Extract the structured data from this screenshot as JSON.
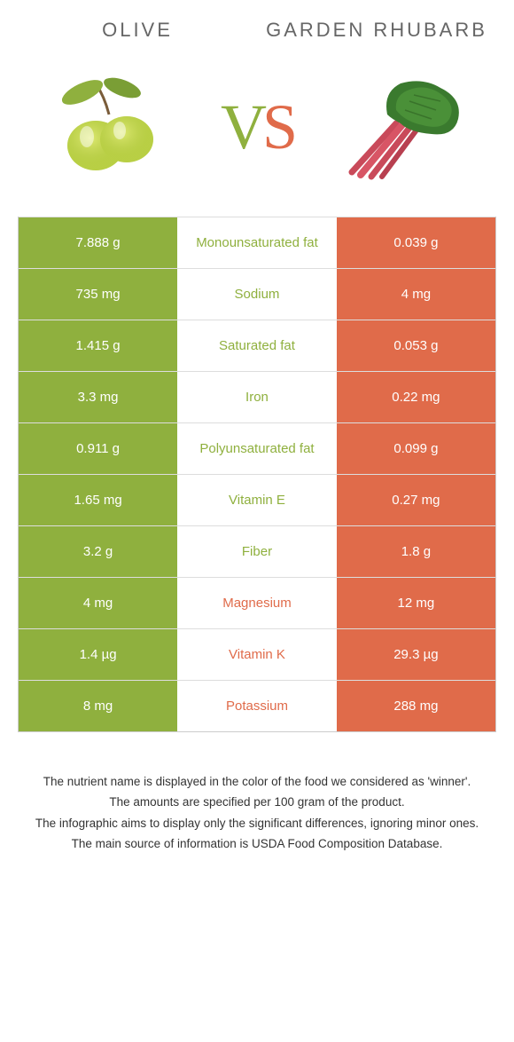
{
  "type": "infographic",
  "colors": {
    "left": "#8fb03e",
    "right": "#e06b4a",
    "background": "#ffffff",
    "border": "#dddddd",
    "text_muted": "#666666"
  },
  "header": {
    "left_title": "Olive",
    "right_title": "Garden Rhubarb"
  },
  "vs": {
    "v": "V",
    "s": "S"
  },
  "rows": [
    {
      "left": "7.888 g",
      "label": "Monounsaturated fat",
      "right": "0.039 g",
      "winner": "left"
    },
    {
      "left": "735 mg",
      "label": "Sodium",
      "right": "4 mg",
      "winner": "left"
    },
    {
      "left": "1.415 g",
      "label": "Saturated fat",
      "right": "0.053 g",
      "winner": "left"
    },
    {
      "left": "3.3 mg",
      "label": "Iron",
      "right": "0.22 mg",
      "winner": "left"
    },
    {
      "left": "0.911 g",
      "label": "Polyunsaturated fat",
      "right": "0.099 g",
      "winner": "left"
    },
    {
      "left": "1.65 mg",
      "label": "Vitamin E",
      "right": "0.27 mg",
      "winner": "left"
    },
    {
      "left": "3.2 g",
      "label": "Fiber",
      "right": "1.8 g",
      "winner": "left"
    },
    {
      "left": "4 mg",
      "label": "Magnesium",
      "right": "12 mg",
      "winner": "right"
    },
    {
      "left": "1.4 µg",
      "label": "Vitamin K",
      "right": "29.3 µg",
      "winner": "right"
    },
    {
      "left": "8 mg",
      "label": "Potassium",
      "right": "288 mg",
      "winner": "right"
    }
  ],
  "footer": {
    "line1": "The nutrient name is displayed in the color of the food we considered as 'winner'.",
    "line2": "The amounts are specified per 100 gram of the product.",
    "line3": "The infographic aims to display only the significant differences, ignoring minor ones.",
    "line4": "The main source of information is USDA Food Composition Database."
  }
}
